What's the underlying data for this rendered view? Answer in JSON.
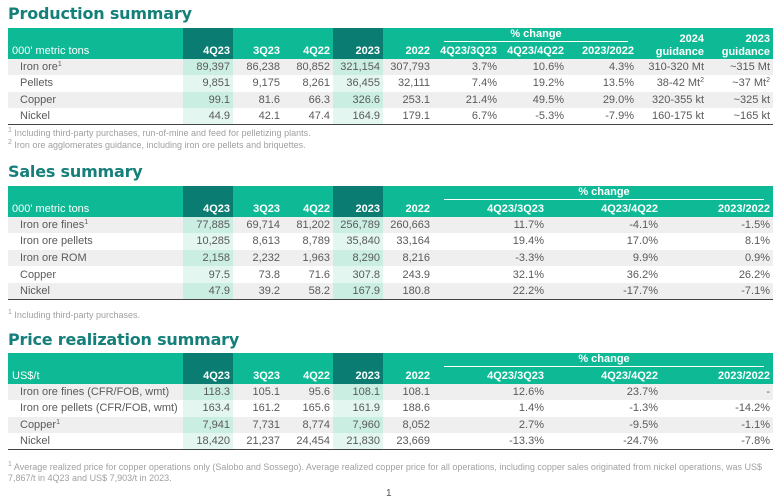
{
  "production": {
    "title": "Production summary",
    "unit_label": "000' metric tons",
    "pct_change_label": "% change",
    "columns": [
      "4Q23",
      "3Q23",
      "4Q22",
      "2023",
      "2022",
      "4Q23/3Q23",
      "4Q23/4Q22",
      "2023/2022"
    ],
    "guidance_2024": [
      "2024",
      "guidance"
    ],
    "guidance_2023": [
      "2023",
      "guidance"
    ],
    "rows": [
      {
        "label": "Iron ore",
        "sup": "1",
        "values": [
          "89,397",
          "86,238",
          "80,852",
          "321,154",
          "307,793",
          "3.7%",
          "10.6%",
          "4.3%"
        ],
        "g2024": "310-320 Mt",
        "g2024_sup": "",
        "g2023": "~315 Mt",
        "g2023_sup": ""
      },
      {
        "label": "Pellets",
        "sup": "",
        "values": [
          "9,851",
          "9,175",
          "8,261",
          "36,455",
          "32,111",
          "7.4%",
          "19.2%",
          "13.5%"
        ],
        "g2024": "38-42 Mt",
        "g2024_sup": "2",
        "g2023": "~37 Mt",
        "g2023_sup": "2"
      },
      {
        "label": "Copper",
        "sup": "",
        "values": [
          "99.1",
          "81.6",
          "66.3",
          "326.6",
          "253.1",
          "21.4%",
          "49.5%",
          "29.0%"
        ],
        "g2024": "320-355 kt",
        "g2024_sup": "",
        "g2023": "~325 kt",
        "g2023_sup": ""
      },
      {
        "label": "Nickel",
        "sup": "",
        "values": [
          "44.9",
          "42.1",
          "47.4",
          "164.9",
          "179.1",
          "6.7%",
          "-5.3%",
          "-7.9%"
        ],
        "g2024": "160-175 kt",
        "g2024_sup": "",
        "g2023": "~165 kt",
        "g2023_sup": ""
      }
    ],
    "footnotes": [
      {
        "mark": "1",
        "text": "Including third-party purchases, run-of-mine and feed for pelletizing plants."
      },
      {
        "mark": "2",
        "text": "Iron ore agglomerates guidance, including iron ore pellets and briquettes."
      }
    ]
  },
  "sales": {
    "title": "Sales summary",
    "unit_label": "000' metric tons",
    "pct_change_label": "% change",
    "columns": [
      "4Q23",
      "3Q23",
      "4Q22",
      "2023",
      "2022",
      "4Q23/3Q23",
      "4Q23/4Q22",
      "2023/2022"
    ],
    "rows": [
      {
        "label": "Iron ore fines",
        "sup": "1",
        "values": [
          "77,885",
          "69,714",
          "81,202",
          "256,789",
          "260,663",
          "11.7%",
          "-4.1%",
          "-1.5%"
        ]
      },
      {
        "label": "Iron ore pellets",
        "sup": "",
        "values": [
          "10,285",
          "8,613",
          "8,789",
          "35,840",
          "33,164",
          "19.4%",
          "17.0%",
          "8.1%"
        ]
      },
      {
        "label": "Iron ore ROM",
        "sup": "",
        "values": [
          "2,158",
          "2,232",
          "1,963",
          "8,290",
          "8,216",
          "-3.3%",
          "9.9%",
          "0.9%"
        ]
      },
      {
        "label": "Copper",
        "sup": "",
        "values": [
          "97.5",
          "73.8",
          "71.6",
          "307.8",
          "243.9",
          "32.1%",
          "36.2%",
          "26.2%"
        ]
      },
      {
        "label": "Nickel",
        "sup": "",
        "values": [
          "47.9",
          "39.2",
          "58.2",
          "167.9",
          "180.8",
          "22.2%",
          "-17.7%",
          "-7.1%"
        ]
      }
    ],
    "footnotes": [
      {
        "mark": "1",
        "text": "Including third-party purchases."
      }
    ]
  },
  "price": {
    "title": "Price realization summary",
    "unit_label": "US$/t",
    "pct_change_label": "% change",
    "columns": [
      "4Q23",
      "3Q23",
      "4Q22",
      "2023",
      "2022",
      "4Q23/3Q23",
      "4Q23/4Q22",
      "2023/2022"
    ],
    "rows": [
      {
        "label": "Iron ore fines (CFR/FOB, wmt)",
        "sup": "",
        "values": [
          "118.3",
          "105.1",
          "95.6",
          "108.1",
          "108.1",
          "12.6%",
          "23.7%",
          "-"
        ]
      },
      {
        "label": "Iron ore pellets (CFR/FOB, wmt)",
        "sup": "",
        "values": [
          "163.4",
          "161.2",
          "165.6",
          "161.9",
          "188.6",
          "1.4%",
          "-1.3%",
          "-14.2%"
        ]
      },
      {
        "label": "Copper",
        "sup": "1",
        "values": [
          "7,941",
          "7,731",
          "8,774",
          "7,960",
          "8,052",
          "2.7%",
          "-9.5%",
          "-1.1%"
        ]
      },
      {
        "label": "Nickel",
        "sup": "",
        "values": [
          "18,420",
          "21,237",
          "24,454",
          "21,830",
          "23,669",
          "-13.3%",
          "-24.7%",
          "-7.8%"
        ]
      }
    ],
    "footnotes": [
      {
        "mark": "1",
        "text": "Average realized price for copper operations only (Salobo and Sossego). Average realized copper price for all operations, including copper sales originated from nickel operations, was US$ 7,867/t in 4Q23 and US$ 7,903/t in 2023."
      }
    ]
  },
  "page_number": "1",
  "colors": {
    "header_green": "#0dba95",
    "header_dark": "#0a7c72",
    "title_teal": "#157f7a",
    "highlight_light": "#cbeee3"
  }
}
